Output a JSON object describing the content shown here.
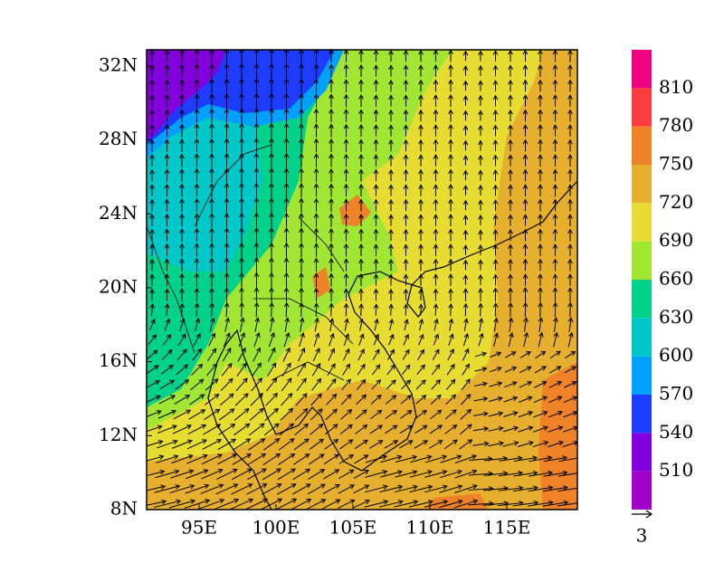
{
  "map": {
    "lon_ticks": [
      {
        "value": 95,
        "label": "95E"
      },
      {
        "value": 100,
        "label": "100E"
      },
      {
        "value": 105,
        "label": "105E"
      },
      {
        "value": 110,
        "label": "110E"
      },
      {
        "value": 115,
        "label": "115E"
      }
    ],
    "lat_ticks": [
      {
        "value": 8,
        "label": "8N"
      },
      {
        "value": 12,
        "label": "12N"
      },
      {
        "value": 16,
        "label": "16N"
      },
      {
        "value": 20,
        "label": "20N"
      },
      {
        "value": 24,
        "label": "24N"
      },
      {
        "value": 28,
        "label": "28N"
      },
      {
        "value": 32,
        "label": "32N"
      }
    ],
    "colorbar": {
      "levels": [
        510,
        540,
        570,
        600,
        630,
        660,
        690,
        720,
        750,
        780,
        810
      ],
      "colors": [
        "#a000c8",
        "#8200dc",
        "#1e3cff",
        "#00a0ff",
        "#00c8c8",
        "#00d28c",
        "#a0e632",
        "#e6dc32",
        "#e6af2d",
        "#f08228",
        "#fa3c3c",
        "#f00082"
      ]
    },
    "reference_vector": {
      "label": "3"
    }
  }
}
